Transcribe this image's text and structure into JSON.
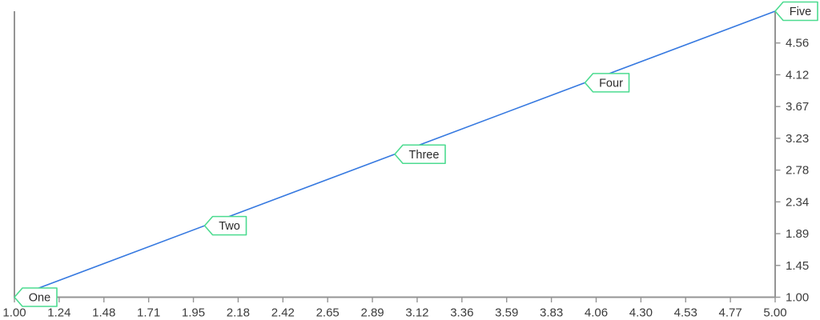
{
  "chart_data": {
    "type": "line",
    "title": "",
    "xlabel": "",
    "ylabel": "",
    "x": [
      1,
      2,
      3,
      4,
      5
    ],
    "y": [
      1,
      2,
      3,
      4,
      5
    ],
    "point_labels": [
      "One",
      "Two",
      "Three",
      "Four",
      "Five"
    ],
    "x_axis": {
      "position": "bottom",
      "range": [
        1,
        5
      ],
      "tick_labels": [
        "1.00",
        "1.24",
        "1.48",
        "1.71",
        "1.95",
        "2.18",
        "2.42",
        "2.65",
        "2.89",
        "3.12",
        "3.36",
        "3.59",
        "3.83",
        "4.06",
        "4.30",
        "4.53",
        "4.77",
        "5.00"
      ]
    },
    "y_axis": {
      "position": "right",
      "range": [
        1,
        5
      ],
      "tick_labels": [
        "1.00",
        "1.45",
        "1.89",
        "2.34",
        "2.78",
        "3.23",
        "3.67",
        "4.12",
        "4.56"
      ]
    },
    "grid": false,
    "legend": false,
    "markers": false,
    "colors": {
      "line": "#3679E0",
      "callout_border": "#4CDB90",
      "callout_fill": "#FFFFFF",
      "callout_text": "#2B2B2B",
      "axis": "#949494",
      "tick_text": "#3C3C3C",
      "background": "#FFFFFF"
    }
  }
}
